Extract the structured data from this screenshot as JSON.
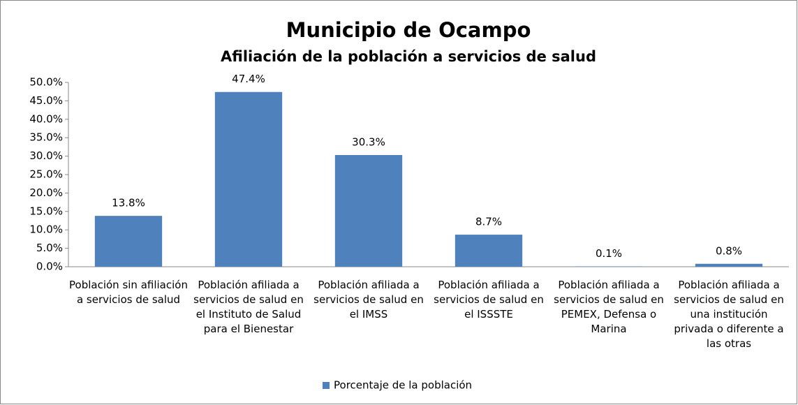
{
  "chart_data": {
    "type": "bar",
    "title": "Municipio de Ocampo",
    "subtitle": "Afiliación de la población a servicios de salud",
    "categories": [
      "Población sin afiliación a servicios de salud",
      "Población afiliada a servicios de salud en el Instituto de Salud para el Bienestar",
      "Población afiliada a servicios de salud en el IMSS",
      "Población afiliada a servicios de salud en el ISSSTE",
      "Población afiliada a servicios de salud en PEMEX, Defensa o Marina",
      "Población afiliada a servicios de salud en una institución privada o diferente a las otras"
    ],
    "series": [
      {
        "name": "Porcentaje de la población",
        "color": "#4f81bd",
        "values": [
          13.8,
          47.4,
          30.3,
          8.7,
          0.1,
          0.8
        ],
        "value_labels": [
          "13.8%",
          "47.4%",
          "30.3%",
          "8.7%",
          "0.1%",
          "0.8%"
        ]
      }
    ],
    "ylim": [
      0,
      50
    ],
    "yticks": [
      {
        "value": 0,
        "label": "0.0%"
      },
      {
        "value": 5,
        "label": "5.0%"
      },
      {
        "value": 10,
        "label": "10.0%"
      },
      {
        "value": 15,
        "label": "15.0%"
      },
      {
        "value": 20,
        "label": "20.0%"
      },
      {
        "value": 25,
        "label": "25.0%"
      },
      {
        "value": 30,
        "label": "30.0%"
      },
      {
        "value": 35,
        "label": "35.0%"
      },
      {
        "value": 40,
        "label": "40.0%"
      },
      {
        "value": 45,
        "label": "45.0%"
      },
      {
        "value": 50,
        "label": "50.0%"
      }
    ],
    "grid": false,
    "legend": "bottom"
  }
}
